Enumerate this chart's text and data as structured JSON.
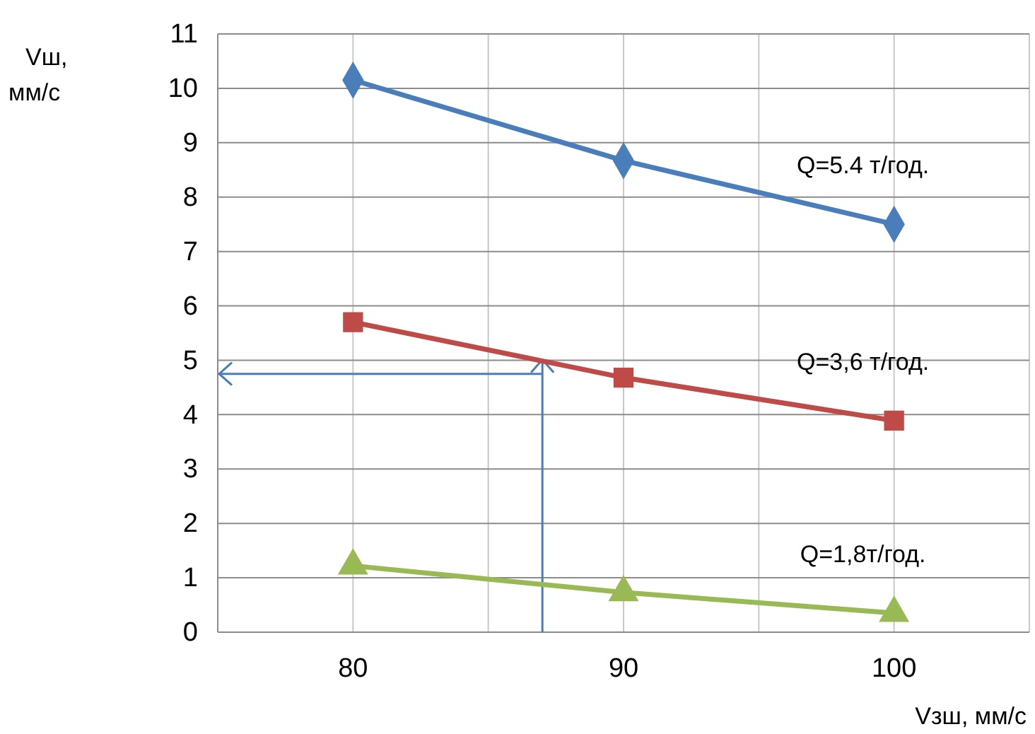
{
  "chart_data": {
    "type": "line",
    "xlabel": "Vзш, мм/с",
    "ylabel": "Vш,\nмм/с",
    "x": [
      80,
      90,
      100
    ],
    "series": [
      {
        "name": "Q=5.4 т/год.",
        "color": "#4a7ebb",
        "marker": "diamond",
        "values": [
          10.15,
          8.67,
          7.5
        ]
      },
      {
        "name": "Q=3,6 т/год.",
        "color": "#be4b48",
        "marker": "square",
        "values": [
          5.7,
          4.68,
          3.89
        ]
      },
      {
        "name": "Q=1,8т/год.",
        "color": "#98b954",
        "marker": "triangle",
        "values": [
          1.22,
          0.73,
          0.35
        ]
      }
    ],
    "xlim": [
      75,
      105
    ],
    "xticks": [
      {
        "value": 75,
        "label": null
      },
      80,
      {
        "value": 85,
        "label": null
      },
      90,
      {
        "value": 95,
        "label": null
      },
      100,
      {
        "value": 105,
        "label": null
      }
    ],
    "ylim": [
      0,
      11
    ],
    "yticks": [
      0,
      1,
      2,
      3,
      4,
      5,
      6,
      7,
      8,
      9,
      10,
      11
    ],
    "grid": true,
    "ref_lines": [
      {
        "axis": "x",
        "value": 87,
        "color": "#4a7ebb"
      },
      {
        "axis": "y",
        "value": 4.75,
        "color": "#4a7ebb"
      }
    ]
  }
}
